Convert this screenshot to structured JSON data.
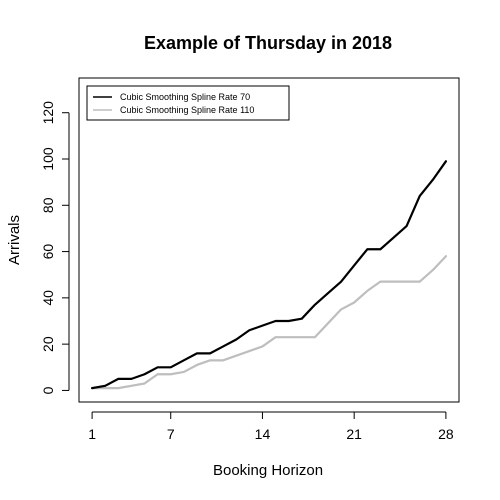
{
  "chart_data": {
    "type": "line",
    "title": "Example of Thursday in 2018",
    "xlabel": "Booking Horizon",
    "ylabel": "Arrivals",
    "xlim": [
      0,
      29
    ],
    "ylim": [
      -5,
      135
    ],
    "x_ticks": [
      1,
      7,
      14,
      21,
      28
    ],
    "y_ticks": [
      0,
      20,
      40,
      60,
      80,
      100,
      120
    ],
    "grid": false,
    "legend_position": "top-left",
    "x": [
      1,
      2,
      3,
      4,
      5,
      6,
      7,
      8,
      9,
      10,
      11,
      12,
      13,
      14,
      15,
      16,
      17,
      18,
      19,
      20,
      21,
      22,
      23,
      24,
      25,
      26,
      27,
      28
    ],
    "series": [
      {
        "name": "Cubic Smoothing Spline Rate 70",
        "color": "#000000",
        "values": [
          1,
          2,
          5,
          5,
          7,
          10,
          10,
          13,
          16,
          16,
          19,
          22,
          26,
          28,
          30,
          30,
          31,
          37,
          42,
          47,
          54,
          61,
          61,
          66,
          71,
          84,
          91,
          99
        ]
      },
      {
        "name": "Cubic Smoothing Spline Rate 110",
        "color": "#bebebe",
        "values": [
          1,
          1,
          1,
          2,
          3,
          7,
          7,
          8,
          11,
          13,
          13,
          15,
          17,
          19,
          23,
          23,
          23,
          23,
          29,
          35,
          38,
          43,
          47,
          47,
          47,
          47,
          52,
          58
        ]
      }
    ]
  }
}
